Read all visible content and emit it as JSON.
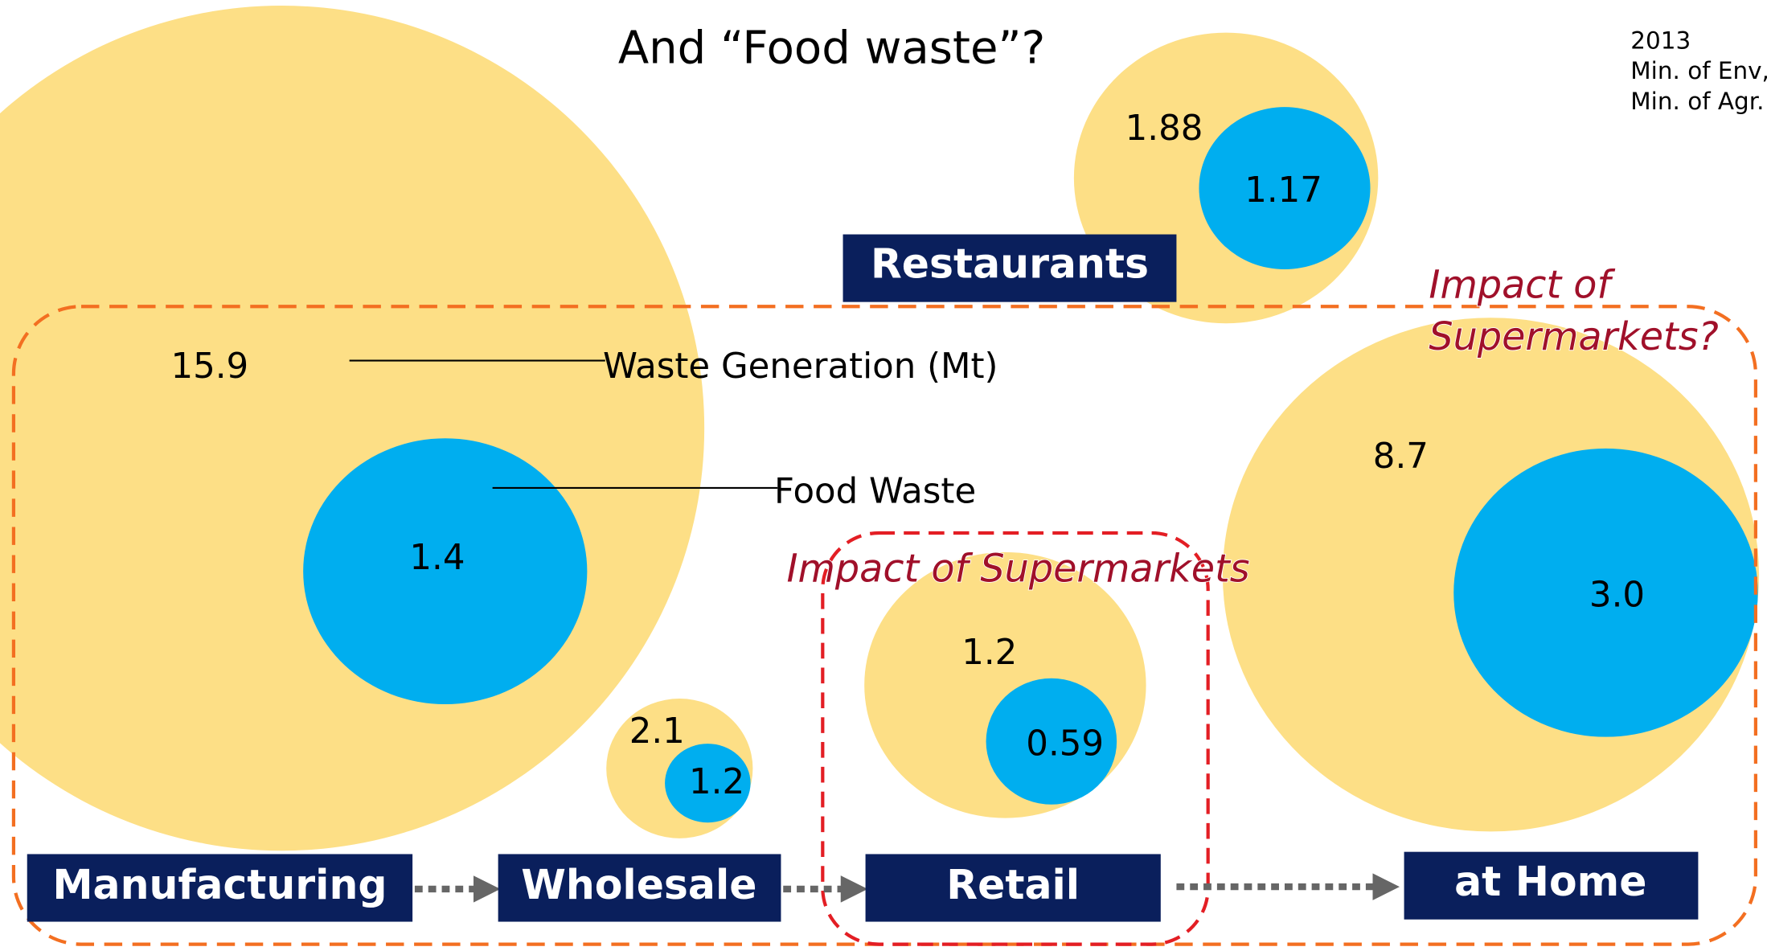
{
  "title": "And “Food waste”?",
  "source": [
    "2013",
    "Min. of Env,",
    "Min. of Agr."
  ],
  "legend": {
    "waste_generation": "Waste Generation (Mt)",
    "food_waste": "Food Waste"
  },
  "stages": [
    {
      "label": "Manufacturing",
      "waste_generation": "15.9",
      "food_waste": "1.4"
    },
    {
      "label": "Wholesale",
      "waste_generation": "2.1",
      "food_waste": "1.2"
    },
    {
      "label": "Retail",
      "waste_generation": "1.2",
      "food_waste": "0.59"
    },
    {
      "label": "at Home",
      "waste_generation": "8.7",
      "food_waste": "3.0"
    },
    {
      "label": "Restaurants",
      "waste_generation": "1.88",
      "food_waste": "1.17"
    }
  ],
  "annotations": {
    "retail": "Impact of Supermarkets",
    "chain": [
      "Impact of",
      "Supermarkets?"
    ]
  }
}
